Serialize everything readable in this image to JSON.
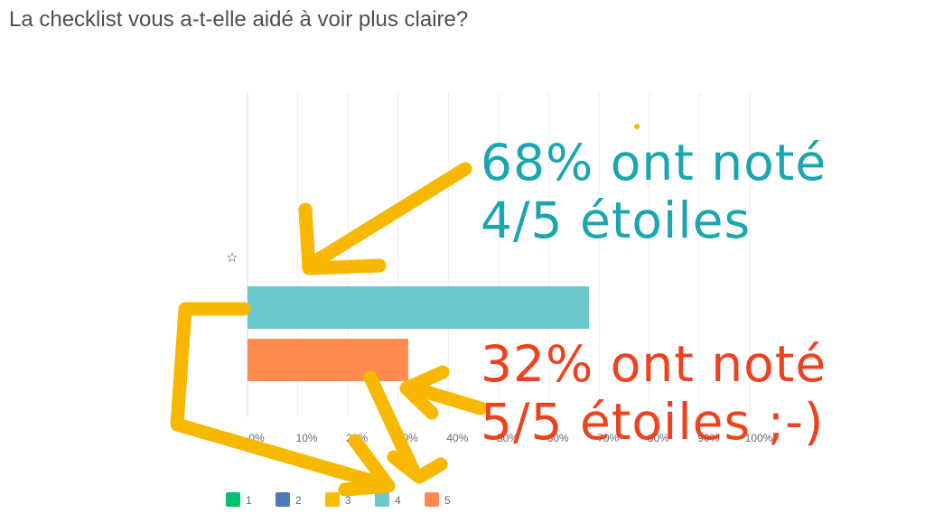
{
  "question": "La checklist vous a-t-elle aidé à voir plus claire?",
  "chart_data": {
    "type": "bar",
    "orientation": "horizontal",
    "stacked": false,
    "row_icon": "star-icon",
    "xlim": [
      0,
      100
    ],
    "x_ticks": [
      "0%",
      "10%",
      "20%",
      "30%",
      "40%",
      "50%",
      "60%",
      "70%",
      "80%",
      "90%",
      "100%"
    ],
    "grid": true,
    "legend_position": "bottom",
    "series": [
      {
        "name": "1",
        "value": 0,
        "color": "#00bf6f"
      },
      {
        "name": "2",
        "value": 0,
        "color": "#507cb6"
      },
      {
        "name": "3",
        "value": 0,
        "color": "#f9be00"
      },
      {
        "name": "4",
        "value": 68,
        "color": "#6bc8cd"
      },
      {
        "name": "5",
        "value": 32,
        "color": "#ff8b4f"
      }
    ]
  },
  "annotations": {
    "teal_line1": "68% ont noté",
    "teal_line2": "4/5 étoiles",
    "red_line1": "32% ont noté",
    "red_line2": "5/5 étoiles ;-)",
    "arrow_color": "#f9b800",
    "teal_color": "#1aa6b0",
    "red_color": "#f0411f"
  }
}
